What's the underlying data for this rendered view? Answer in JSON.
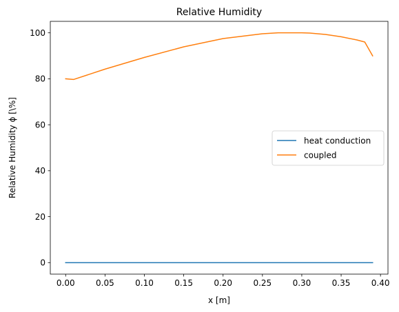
{
  "chart_data": {
    "type": "line",
    "title": "Relative Humidity",
    "xlabel": "x [m]",
    "ylabel": "Relative Humidity ϕ [\\%]",
    "xlim": [
      -0.0195,
      0.4095
    ],
    "ylim": [
      -5,
      105
    ],
    "xticks": [
      0.0,
      0.05,
      0.1,
      0.15,
      0.2,
      0.25,
      0.3,
      0.35,
      0.4
    ],
    "xtick_labels": [
      "0.00",
      "0.05",
      "0.10",
      "0.15",
      "0.20",
      "0.25",
      "0.30",
      "0.35",
      "0.40"
    ],
    "yticks": [
      0,
      20,
      40,
      60,
      80,
      100
    ],
    "ytick_labels": [
      "0",
      "20",
      "40",
      "60",
      "80",
      "100"
    ],
    "grid": false,
    "legend_position": "center-right",
    "series": [
      {
        "name": "heat conduction",
        "color": "#1f77b4",
        "x": [
          0.0,
          0.39
        ],
        "y": [
          0,
          0
        ]
      },
      {
        "name": "coupled",
        "color": "#ff7f0e",
        "x": [
          0.0,
          0.01,
          0.05,
          0.1,
          0.15,
          0.2,
          0.25,
          0.27,
          0.3,
          0.31,
          0.33,
          0.35,
          0.37,
          0.38,
          0.39
        ],
        "y": [
          80,
          79.7,
          84.2,
          89.3,
          93.9,
          97.5,
          99.6,
          100,
          100,
          99.9,
          99.3,
          98.3,
          96.9,
          96,
          90
        ]
      }
    ]
  }
}
